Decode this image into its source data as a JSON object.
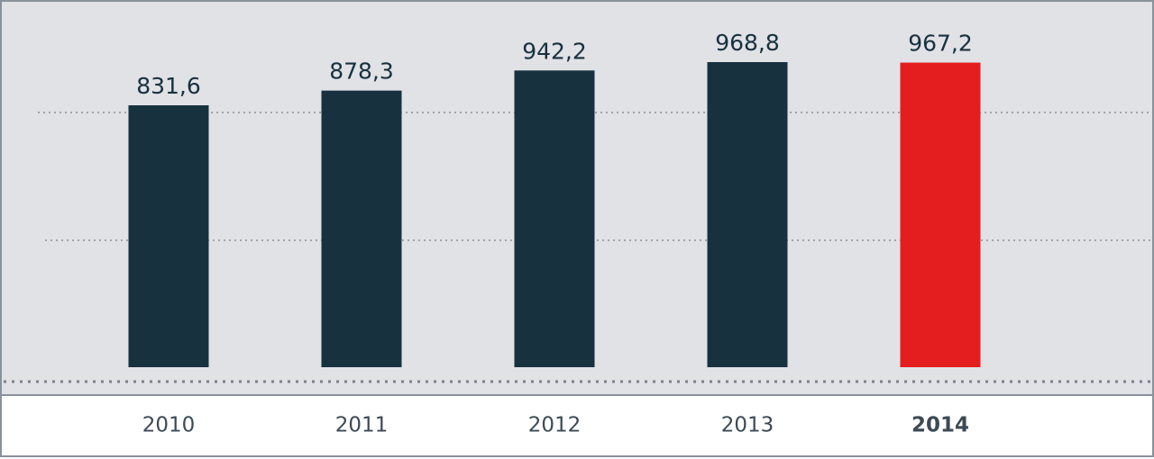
{
  "chart_data": {
    "type": "bar",
    "categories": [
      "2010",
      "2011",
      "2012",
      "2013",
      "2014"
    ],
    "values": [
      831.6,
      878.3,
      942.2,
      968.8,
      967.2
    ],
    "value_labels": [
      "831,6",
      "878,3",
      "942,2",
      "968,8",
      "967,2"
    ],
    "colors": [
      "#17313f",
      "#17313f",
      "#17313f",
      "#17313f",
      "#e41e1e"
    ],
    "bold_categories": [
      false,
      false,
      false,
      false,
      true
    ]
  }
}
